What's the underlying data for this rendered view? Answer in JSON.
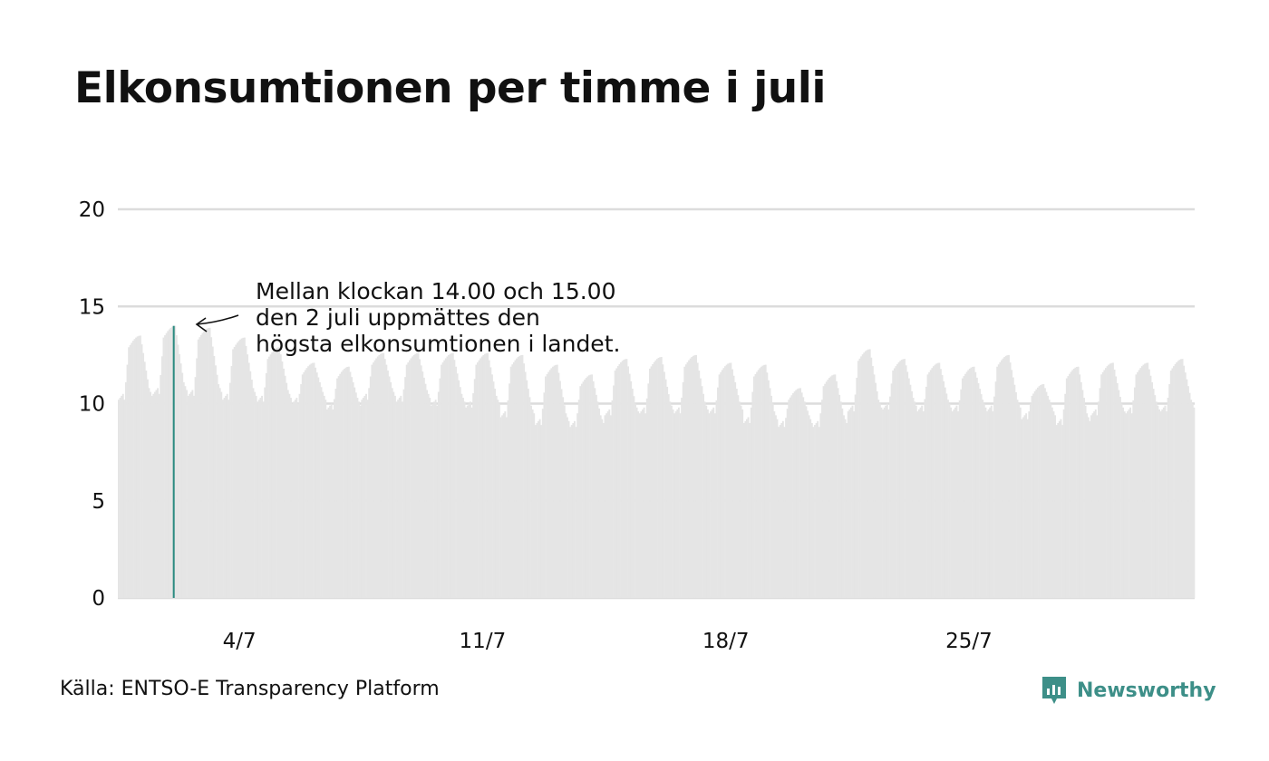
{
  "title": "Elkonsumtionen per timme i juli",
  "source": "Källa: ENTSO-E Transparency Platform",
  "brand": {
    "name": "Newsworthy",
    "icon": "newsworthy-logo-icon",
    "color": "#3d8f88"
  },
  "colors": {
    "bars": "#e5e5e5",
    "highlight": "#2a8a80",
    "grid": "#dcdcdc",
    "text": "#111111"
  },
  "annotation": {
    "lines": [
      "Mellan klockan 14.00 och 15.00",
      "den 2 juli uppmättes den",
      "högsta elkonsumtionen i landet."
    ]
  },
  "chart_data": {
    "type": "bar",
    "xlabel": "",
    "ylabel": "",
    "ylim": [
      0,
      20
    ],
    "y_ticks": [
      0,
      5,
      10,
      15,
      20
    ],
    "x_ticks": [
      "4/7",
      "11/7",
      "18/7",
      "25/7"
    ],
    "grid": true,
    "resolution": "hourly",
    "highlight": {
      "date": "2 juli",
      "hour": "14.00-15.00",
      "value": 14.0
    },
    "days": [
      {
        "date": "1/7",
        "night": 10.2,
        "peak": 13.5
      },
      {
        "date": "2/7",
        "night": 10.5,
        "peak": 14.0
      },
      {
        "date": "3/7",
        "night": 10.4,
        "peak": 13.9
      },
      {
        "date": "4/7",
        "night": 10.2,
        "peak": 13.4
      },
      {
        "date": "5/7",
        "night": 10.1,
        "peak": 12.9
      },
      {
        "date": "6/7",
        "night": 10.0,
        "peak": 12.1
      },
      {
        "date": "7/7",
        "night": 9.7,
        "peak": 11.9
      },
      {
        "date": "8/7",
        "night": 10.2,
        "peak": 12.6
      },
      {
        "date": "9/7",
        "night": 10.1,
        "peak": 12.6
      },
      {
        "date": "10/7",
        "night": 9.9,
        "peak": 12.6
      },
      {
        "date": "11/7",
        "night": 9.8,
        "peak": 12.6
      },
      {
        "date": "12/7",
        "night": 9.3,
        "peak": 12.5
      },
      {
        "date": "13/7",
        "night": 8.9,
        "peak": 12.0
      },
      {
        "date": "14/7",
        "night": 8.8,
        "peak": 11.5
      },
      {
        "date": "15/7",
        "night": 9.4,
        "peak": 12.3
      },
      {
        "date": "16/7",
        "night": 9.5,
        "peak": 12.4
      },
      {
        "date": "17/7",
        "night": 9.5,
        "peak": 12.5
      },
      {
        "date": "18/7",
        "night": 9.5,
        "peak": 12.1
      },
      {
        "date": "19/7",
        "night": 9.0,
        "peak": 12.0
      },
      {
        "date": "20/7",
        "night": 8.8,
        "peak": 10.8
      },
      {
        "date": "21/7",
        "night": 8.8,
        "peak": 11.5
      },
      {
        "date": "22/7",
        "night": 9.6,
        "peak": 12.8
      },
      {
        "date": "23/7",
        "night": 9.7,
        "peak": 12.3
      },
      {
        "date": "24/7",
        "night": 9.6,
        "peak": 12.1
      },
      {
        "date": "25/7",
        "night": 9.6,
        "peak": 11.9
      },
      {
        "date": "26/7",
        "night": 9.6,
        "peak": 12.5
      },
      {
        "date": "27/7",
        "night": 9.2,
        "peak": 11.0
      },
      {
        "date": "28/7",
        "night": 8.9,
        "peak": 11.9
      },
      {
        "date": "29/7",
        "night": 9.4,
        "peak": 12.1
      },
      {
        "date": "30/7",
        "night": 9.5,
        "peak": 12.1
      },
      {
        "date": "31/7",
        "night": 9.6,
        "peak": 12.3
      }
    ]
  }
}
